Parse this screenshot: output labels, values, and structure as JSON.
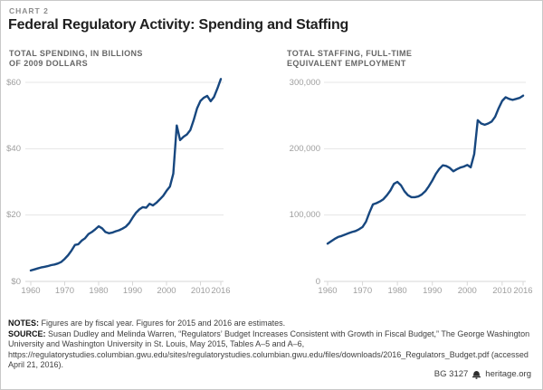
{
  "header": {
    "kicker": "CHART 2",
    "title": "Federal Regulatory Activity: Spending and Staffing"
  },
  "chart_data": [
    {
      "type": "line",
      "slug": "spending-line",
      "title": "TOTAL SPENDING, IN BILLIONS\nOF 2009 DOLLARS",
      "series_name": "Total regulatory spending, billions of 2009 dollars",
      "x": [
        1960,
        1961,
        1962,
        1963,
        1964,
        1965,
        1966,
        1967,
        1968,
        1969,
        1970,
        1971,
        1972,
        1973,
        1974,
        1975,
        1976,
        1977,
        1978,
        1979,
        1980,
        1981,
        1982,
        1983,
        1984,
        1985,
        1986,
        1987,
        1988,
        1989,
        1990,
        1991,
        1992,
        1993,
        1994,
        1995,
        1996,
        1997,
        1998,
        1999,
        2000,
        2001,
        2002,
        2003,
        2004,
        2005,
        2006,
        2007,
        2008,
        2009,
        2010,
        2011,
        2012,
        2013,
        2014,
        2015,
        2016
      ],
      "values": [
        3.3,
        3.6,
        3.9,
        4.2,
        4.4,
        4.6,
        4.9,
        5.1,
        5.4,
        5.9,
        6.8,
        7.9,
        9.3,
        11.0,
        11.2,
        12.3,
        13.0,
        14.3,
        14.9,
        15.7,
        16.6,
        16.0,
        14.9,
        14.5,
        14.7,
        15.1,
        15.4,
        15.9,
        16.5,
        17.6,
        19.2,
        20.7,
        21.7,
        22.4,
        22.2,
        23.4,
        22.9,
        23.7,
        24.7,
        25.8,
        27.3,
        28.6,
        32.5,
        47.0,
        42.6,
        43.6,
        44.3,
        45.6,
        48.6,
        52.2,
        54.4,
        55.4,
        55.9,
        54.3,
        55.6,
        58.2,
        61.0
      ],
      "ylim": [
        0,
        60
      ],
      "yticks": [
        0,
        20,
        40,
        60
      ],
      "ytick_labels": [
        "$0",
        "$20",
        "$40",
        "$60"
      ],
      "xticks": [
        1960,
        1970,
        1980,
        1990,
        2000,
        2010,
        2016
      ],
      "line_color": "#17477f",
      "grid": true,
      "legend": "none"
    },
    {
      "type": "line",
      "slug": "staffing-line",
      "title": "TOTAL STAFFING, FULL-TIME\nEQUIVALENT EMPLOYMENT",
      "series_name": "Total regulatory staffing, full-time equivalent employment",
      "x": [
        1960,
        1961,
        1962,
        1963,
        1964,
        1965,
        1966,
        1967,
        1968,
        1969,
        1970,
        1971,
        1972,
        1973,
        1974,
        1975,
        1976,
        1977,
        1978,
        1979,
        1980,
        1981,
        1982,
        1983,
        1984,
        1985,
        1986,
        1987,
        1988,
        1989,
        1990,
        1991,
        1992,
        1993,
        1994,
        1995,
        1996,
        1997,
        1998,
        1999,
        2000,
        2001,
        2002,
        2003,
        2004,
        2005,
        2006,
        2007,
        2008,
        2009,
        2010,
        2011,
        2012,
        2013,
        2014,
        2015,
        2016
      ],
      "values": [
        57000,
        60500,
        64000,
        67000,
        68500,
        70500,
        72500,
        74500,
        76000,
        78500,
        82000,
        90000,
        104000,
        116000,
        118000,
        120500,
        124000,
        130000,
        137000,
        147000,
        150000,
        145000,
        136000,
        130000,
        127000,
        127000,
        128000,
        131000,
        136000,
        143500,
        152000,
        162000,
        169500,
        175000,
        174000,
        171000,
        166000,
        169000,
        171500,
        173000,
        175500,
        172000,
        192000,
        243000,
        238000,
        236000,
        238000,
        241000,
        248000,
        261000,
        272000,
        277500,
        275000,
        273500,
        275000,
        276500,
        280000
      ],
      "ylim": [
        0,
        300000
      ],
      "yticks": [
        0,
        100000,
        200000,
        300000
      ],
      "ytick_labels": [
        "0",
        "100,000",
        "200,000",
        "300,000"
      ],
      "xticks": [
        1960,
        1970,
        1980,
        1990,
        2000,
        2010,
        2016
      ],
      "line_color": "#17477f",
      "grid": true,
      "legend": "none"
    }
  ],
  "notes": {
    "notes_label": "NOTES: ",
    "notes_text": "Figures are by fiscal year. Figures for 2015 and 2016 are estimates.",
    "source_label": "SOURCE: ",
    "source_text": "Susan Dudley and Melinda Warren, “Regulators’ Budget Increases Consistent with Growth in Fiscal Budget,” The George Washington University and Washington University in St. Louis, May 2015, Tables A–5 and A–6, https://regulatorystudies.columbian.gwu.edu/sites/regulatorystudies.columbian.gwu.edu/files/downloads/2016_Regulators_Budget.pdf (accessed April 21, 2016)."
  },
  "footer": {
    "doc_id": "BG 3127",
    "site": "heritage.org"
  },
  "colors": {
    "line": "#17477f",
    "grid": "#e4e4e4",
    "axis": "#d7d7d7",
    "tick_label": "#9e9e9e",
    "title": "#1f1f1f",
    "kicker": "#8c8c8c",
    "subtitle": "#666666"
  }
}
